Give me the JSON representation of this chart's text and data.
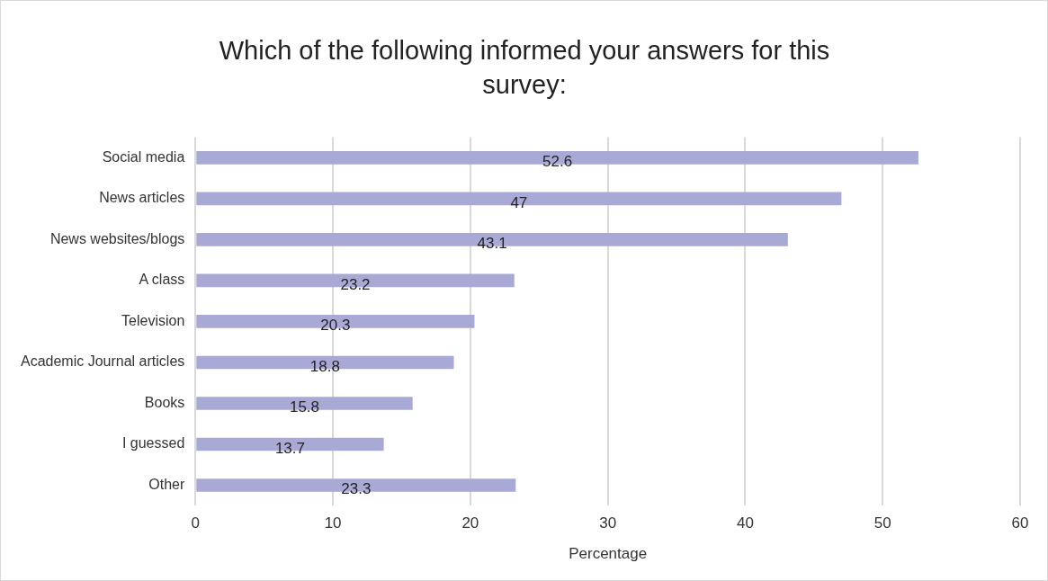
{
  "chart_data": {
    "type": "bar",
    "orientation": "horizontal",
    "title": "Which of the following informed your answers for this survey:",
    "xlabel": "Percentage",
    "categories": [
      "Social media",
      "News articles",
      "News websites/blogs",
      "A class",
      "Television",
      "Academic Journal articles",
      "Books",
      "I guessed",
      "Other"
    ],
    "values": [
      52.6,
      47,
      43.1,
      23.2,
      20.3,
      18.8,
      15.8,
      13.7,
      23.3
    ],
    "color": "#a9a9d6",
    "xlim": [
      0,
      60
    ],
    "xticks": [
      0,
      10,
      20,
      30,
      40,
      50,
      60
    ],
    "grid": "x",
    "data_labels": true
  }
}
